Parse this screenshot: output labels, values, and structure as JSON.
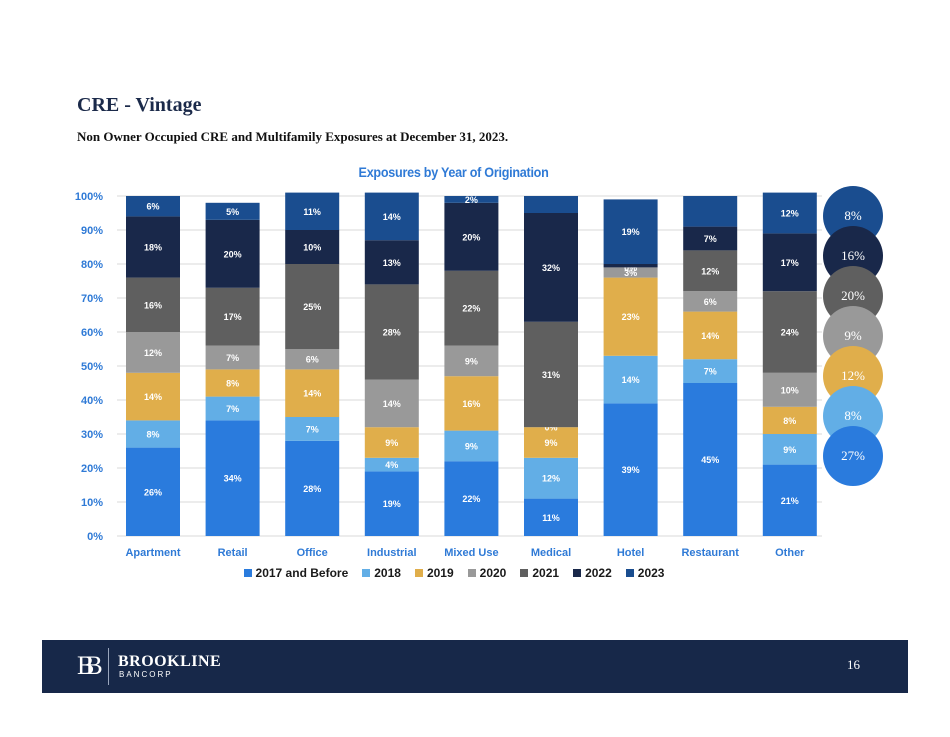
{
  "page": {
    "title": "CRE - Vintage",
    "subtitle": "Non Owner Occupied CRE and Multifamily Exposures at December 31, 2023.",
    "page_number": "16"
  },
  "footer": {
    "logo_mark": "BB",
    "brand_name": "BROOKLINE",
    "brand_sub": "BANCORP"
  },
  "colors": {
    "2017 and Before": "#2a7bdd",
    "2018": "#62aee6",
    "2019": "#e0ae4b",
    "2020": "#999999",
    "2021": "#5f5f5f",
    "2022": "#19284a",
    "2023": "#1a4d8f",
    "axis_text": "#2f7ad6",
    "footer_bg": "#172849"
  },
  "summary_circles": [
    {
      "series": "2023",
      "label": "8%"
    },
    {
      "series": "2022",
      "label": "16%"
    },
    {
      "series": "2021",
      "label": "20%"
    },
    {
      "series": "2020",
      "label": "9%"
    },
    {
      "series": "2019",
      "label": "12%"
    },
    {
      "series": "2018",
      "label": "8%"
    },
    {
      "series": "2017 and Before",
      "label": "27%"
    }
  ],
  "chart_data": {
    "type": "bar",
    "stacked": true,
    "title": "Exposures by Year of Origination",
    "xlabel": "",
    "ylabel": "",
    "ylim": [
      0,
      100
    ],
    "yticks": [
      "0%",
      "10%",
      "20%",
      "30%",
      "40%",
      "50%",
      "60%",
      "70%",
      "80%",
      "90%",
      "100%"
    ],
    "grid": true,
    "legend_position": "bottom",
    "categories": [
      "Apartment",
      "Retail",
      "Office",
      "Industrial",
      "Mixed Use",
      "Medical",
      "Hotel",
      "Restaurant",
      "Other"
    ],
    "series": [
      {
        "name": "2017 and Before",
        "values": [
          26,
          34,
          28,
          19,
          22,
          11,
          39,
          45,
          21
        ],
        "labels": [
          "26%",
          "34%",
          "28%",
          "19%",
          "22%",
          "11%",
          "39%",
          "45%",
          "21%"
        ]
      },
      {
        "name": "2018",
        "values": [
          8,
          7,
          7,
          4,
          9,
          12,
          14,
          7,
          9
        ],
        "labels": [
          "8%",
          "7%",
          "7%",
          "4%",
          "9%",
          "12%",
          "14%",
          "7%",
          "9%"
        ]
      },
      {
        "name": "2019",
        "values": [
          14,
          8,
          14,
          9,
          16,
          9,
          23,
          14,
          8
        ],
        "labels": [
          "14%",
          "8%",
          "14%",
          "9%",
          "16%",
          "9%",
          "23%",
          "14%",
          "8%"
        ]
      },
      {
        "name": "2020",
        "values": [
          12,
          7,
          6,
          14,
          9,
          0,
          3,
          6,
          10
        ],
        "labels": [
          "12%",
          "7%",
          "6%",
          "14%",
          "9%",
          "0%",
          "3%",
          "6%",
          "10%"
        ]
      },
      {
        "name": "2021",
        "values": [
          16,
          17,
          25,
          28,
          22,
          31,
          0,
          12,
          24
        ],
        "labels": [
          "16%",
          "17%",
          "25%",
          "28%",
          "22%",
          "31%",
          "0%",
          "12%",
          "24%"
        ]
      },
      {
        "name": "2022",
        "values": [
          18,
          20,
          10,
          13,
          20,
          32,
          1,
          7,
          17
        ],
        "labels": [
          "18%",
          "20%",
          "10%",
          "13%",
          "20%",
          "32%",
          "",
          "7%",
          "17%"
        ]
      },
      {
        "name": "2023",
        "values": [
          6,
          5,
          11,
          14,
          2,
          5,
          19,
          9,
          12
        ],
        "labels": [
          "6%",
          "5%",
          "11%",
          "14%",
          "2%",
          "",
          "19%",
          "",
          "12%"
        ]
      }
    ]
  }
}
